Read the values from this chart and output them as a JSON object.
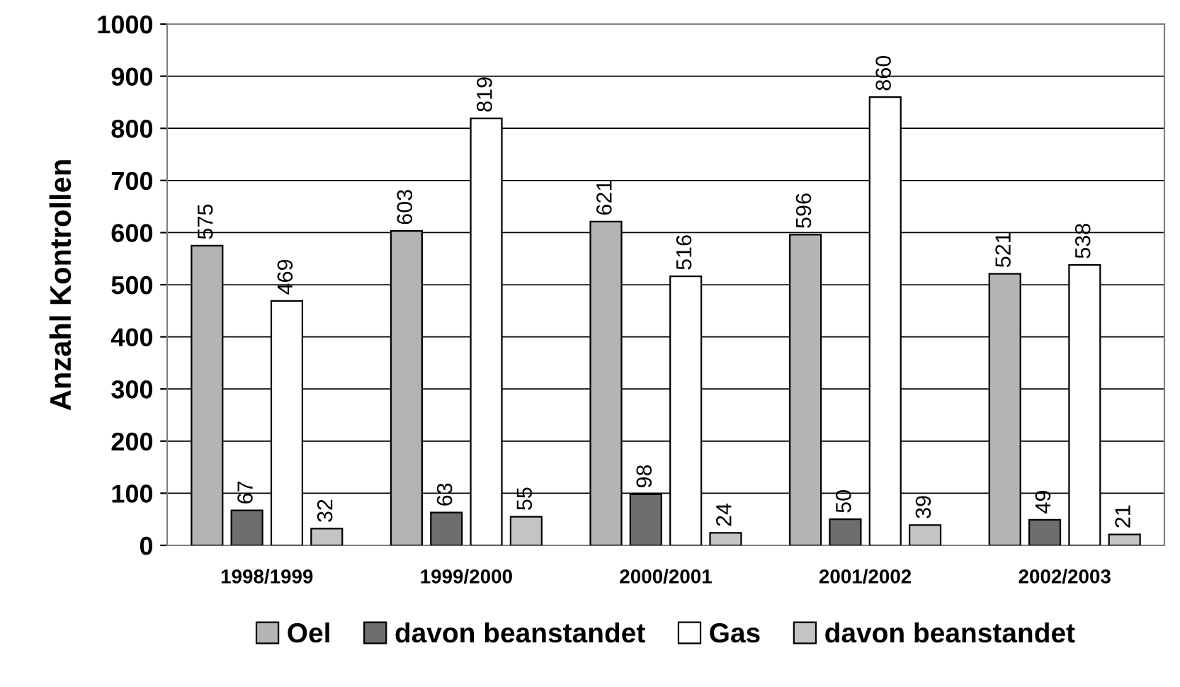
{
  "chart_data": {
    "type": "bar",
    "ylabel": "Anzahl Kontrollen",
    "categories": [
      "1998/1999",
      "1999/2000",
      "2000/2001",
      "2001/2002",
      "2002/2003"
    ],
    "series": [
      {
        "name": "Oel",
        "color": "#b4b4b4",
        "values": [
          575,
          603,
          621,
          596,
          521
        ]
      },
      {
        "name": "davon beanstandet",
        "color": "#6e6e6e",
        "values": [
          67,
          63,
          98,
          50,
          49
        ]
      },
      {
        "name": "Gas",
        "color": "#ffffff",
        "values": [
          469,
          819,
          516,
          860,
          538
        ]
      },
      {
        "name": "davon beanstandet",
        "color": "#c4c4c4",
        "values": [
          32,
          55,
          24,
          39,
          21
        ]
      }
    ],
    "ylim": [
      0,
      1000
    ],
    "yticks": [
      0,
      100,
      200,
      300,
      400,
      500,
      600,
      700,
      800,
      900,
      1000
    ],
    "grid": "y",
    "legend": "bottom",
    "data_labels": true
  }
}
